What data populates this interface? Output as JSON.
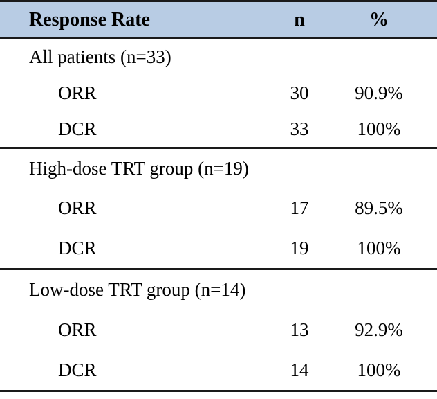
{
  "table": {
    "title": "Response Rate table",
    "colors": {
      "header_bg": "#b8cce4",
      "border": "#1a1a1a"
    },
    "header": {
      "label": "Response Rate",
      "col_n": "n",
      "col_pct": "%"
    },
    "sections": [
      {
        "group": "All patients (n=33)",
        "rows": [
          {
            "label": "ORR",
            "n": "30",
            "pct": "90.9%"
          },
          {
            "label": "DCR",
            "n": "33",
            "pct": "100%"
          }
        ]
      },
      {
        "group": "High-dose TRT group (n=19)",
        "rows": [
          {
            "label": "ORR",
            "n": "17",
            "pct": "89.5%"
          },
          {
            "label": "DCR",
            "n": "19",
            "pct": "100%"
          }
        ]
      },
      {
        "group": "Low-dose TRT group (n=14)",
        "rows": [
          {
            "label": "ORR",
            "n": "13",
            "pct": "92.9%"
          },
          {
            "label": "DCR",
            "n": "14",
            "pct": "100%"
          }
        ]
      }
    ]
  }
}
